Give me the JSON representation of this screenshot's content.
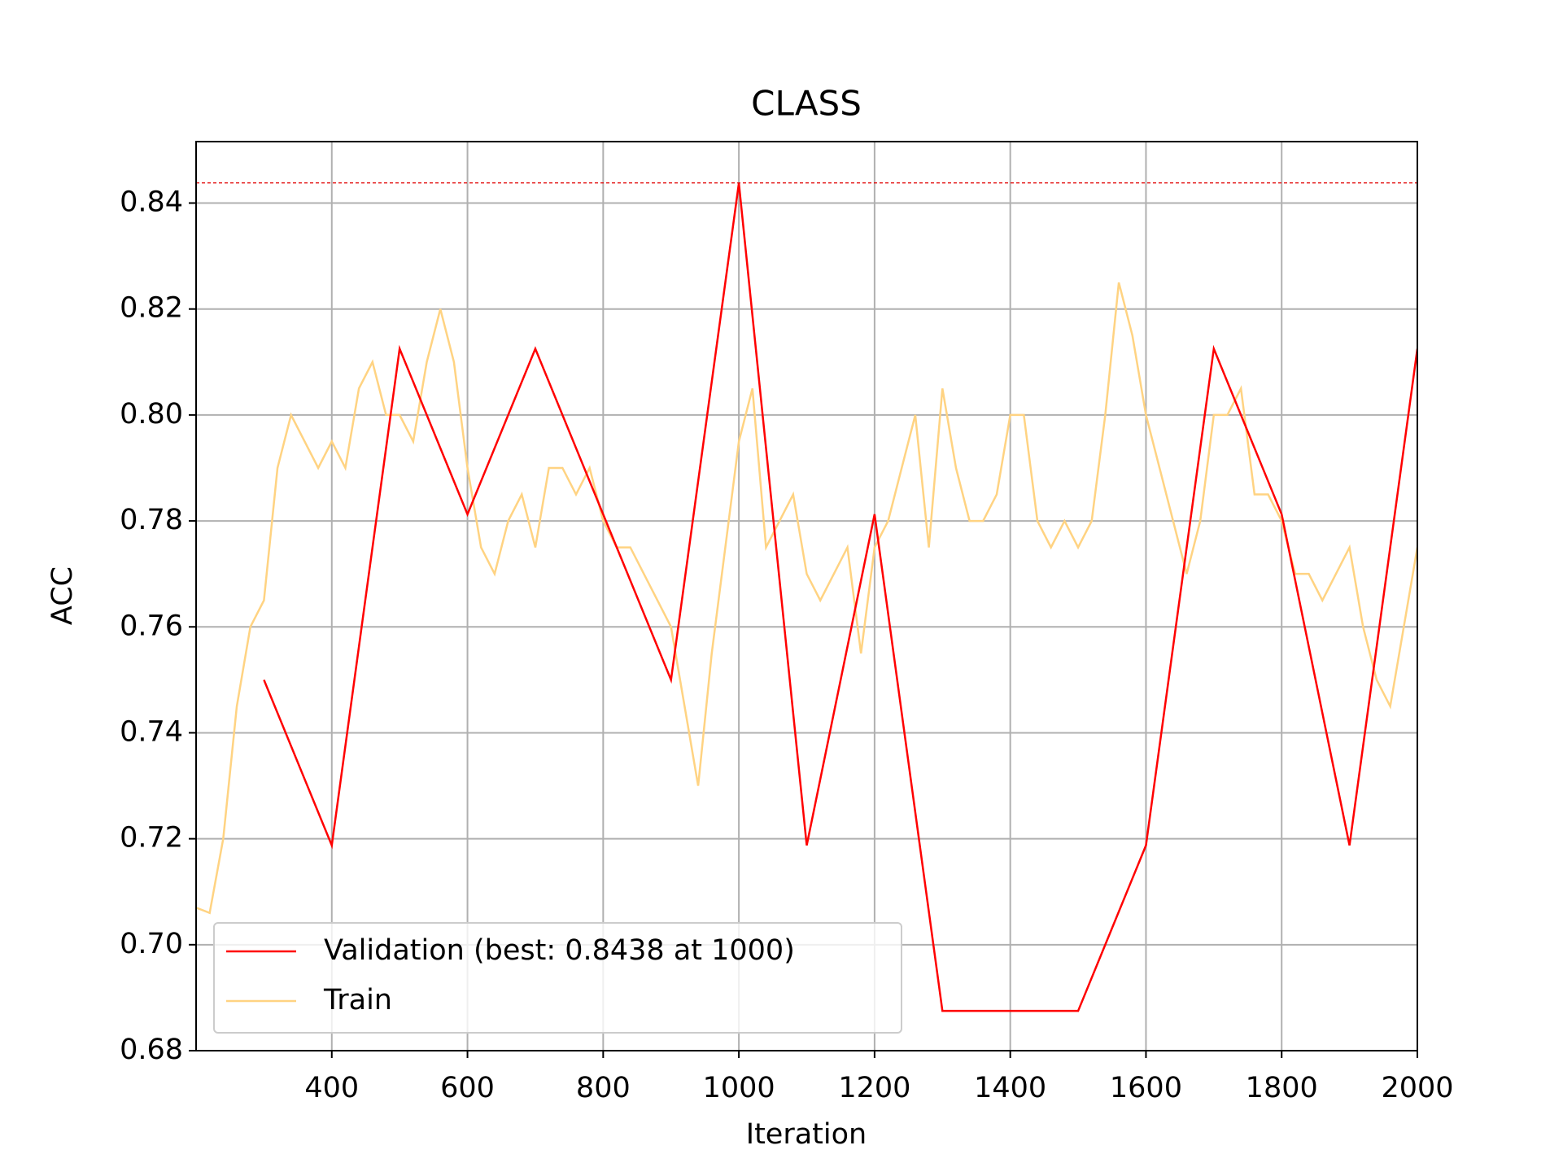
{
  "chart_data": {
    "type": "line",
    "title": "CLASS",
    "xlabel": "Iteration",
    "ylabel": "ACC",
    "xlim": [
      200,
      2000
    ],
    "ylim": [
      0.68,
      0.8516
    ],
    "xticks": [
      400,
      600,
      800,
      1000,
      1200,
      1400,
      1600,
      1800,
      2000
    ],
    "yticks": [
      0.68,
      {
        "value": 0.7,
        "label": "0.70"
      },
      0.72,
      0.74,
      0.76,
      0.78,
      {
        "value": 0.8,
        "label": "0.80"
      },
      0.82,
      0.84
    ],
    "grid": true,
    "legend": "lower left",
    "best_line": 0.8438,
    "best_line_color": "#e00000",
    "series": [
      {
        "name": "Validation (best: 0.8438 at 1000)",
        "color": "#ff0000",
        "x": [
          300,
          400,
          500,
          600,
          700,
          800,
          900,
          1000,
          1100,
          1200,
          1300,
          1400,
          1500,
          1600,
          1700,
          1800,
          1900,
          2000
        ],
        "values": [
          0.75,
          0.71875,
          0.8125,
          0.78125,
          0.8125,
          0.78125,
          0.75,
          0.84375,
          0.71875,
          0.78125,
          0.6875,
          0.6875,
          0.6875,
          0.71875,
          0.8125,
          0.78125,
          0.71875,
          0.8125
        ]
      },
      {
        "name": "Train",
        "color": "#ffd382",
        "x": [
          200,
          220,
          240,
          260,
          280,
          300,
          320,
          340,
          360,
          380,
          400,
          420,
          440,
          460,
          480,
          500,
          520,
          540,
          560,
          580,
          600,
          620,
          640,
          660,
          680,
          700,
          720,
          740,
          760,
          780,
          800,
          820,
          840,
          860,
          880,
          900,
          920,
          940,
          960,
          980,
          1000,
          1020,
          1040,
          1060,
          1080,
          1100,
          1120,
          1140,
          1160,
          1180,
          1200,
          1220,
          1240,
          1260,
          1280,
          1300,
          1320,
          1340,
          1360,
          1380,
          1400,
          1420,
          1440,
          1460,
          1480,
          1500,
          1520,
          1540,
          1560,
          1580,
          1600,
          1620,
          1640,
          1660,
          1680,
          1700,
          1720,
          1740,
          1760,
          1780,
          1800,
          1820,
          1840,
          1860,
          1880,
          1900,
          1920,
          1940,
          1960,
          1980,
          2000
        ],
        "values": [
          0.707,
          0.706,
          0.72,
          0.745,
          0.76,
          0.765,
          0.79,
          0.8,
          0.795,
          0.79,
          0.795,
          0.79,
          0.805,
          0.81,
          0.8,
          0.8,
          0.795,
          0.81,
          0.82,
          0.81,
          0.79,
          0.775,
          0.77,
          0.78,
          0.785,
          0.775,
          0.79,
          0.79,
          0.785,
          0.79,
          0.78,
          0.775,
          0.775,
          0.77,
          0.765,
          0.76,
          0.745,
          0.73,
          0.755,
          0.775,
          0.795,
          0.805,
          0.775,
          0.78,
          0.785,
          0.77,
          0.765,
          0.77,
          0.775,
          0.755,
          0.775,
          0.78,
          0.79,
          0.8,
          0.775,
          0.805,
          0.79,
          0.78,
          0.78,
          0.785,
          0.8,
          0.8,
          0.78,
          0.775,
          0.78,
          0.775,
          0.78,
          0.8,
          0.825,
          0.815,
          0.8,
          0.79,
          0.78,
          0.77,
          0.78,
          0.8,
          0.8,
          0.805,
          0.785,
          0.785,
          0.78,
          0.77,
          0.77,
          0.765,
          0.77,
          0.775,
          0.76,
          0.75,
          0.745,
          0.76,
          0.775
        ]
      }
    ]
  }
}
